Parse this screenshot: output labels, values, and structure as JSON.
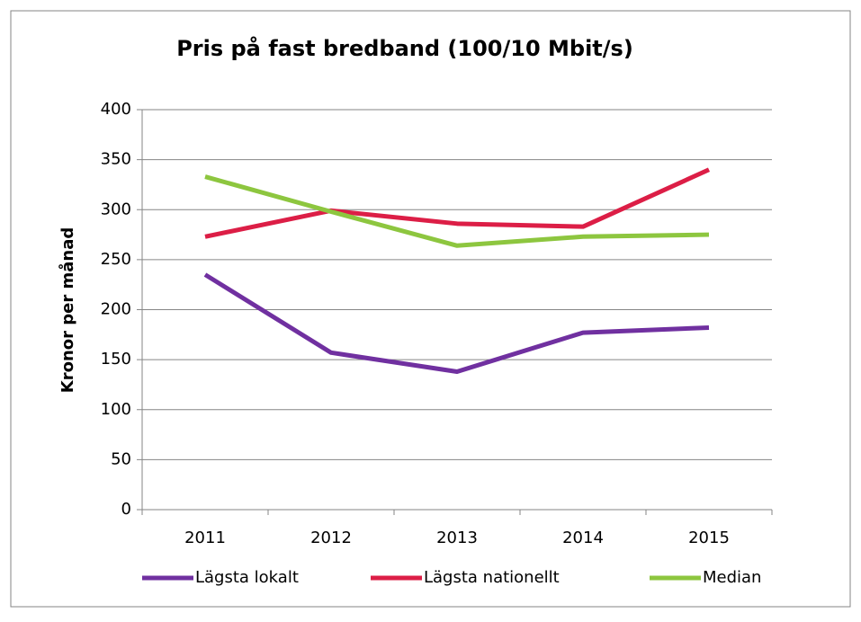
{
  "chart_data": {
    "type": "line",
    "title": "Pris på fast bredband (100/10 Mbit/s)",
    "y_label": "Kronor per månad",
    "categories": [
      "2011",
      "2012",
      "2013",
      "2014",
      "2015"
    ],
    "series": [
      {
        "name": "Lägsta lokalt",
        "color": "#7030a0",
        "values": [
          235,
          157,
          138,
          177,
          182
        ]
      },
      {
        "name": "Lägsta nationellt",
        "color": "#dc1e46",
        "values": [
          273,
          299,
          286,
          283,
          340
        ]
      },
      {
        "name": "Median",
        "color": "#8dc63f",
        "values": [
          333,
          298,
          264,
          273,
          275
        ]
      }
    ],
    "ylim": [
      0,
      400
    ],
    "yticks": [
      0,
      50,
      100,
      150,
      200,
      250,
      300,
      350,
      400
    ],
    "grid": true,
    "legend": "bottom"
  }
}
